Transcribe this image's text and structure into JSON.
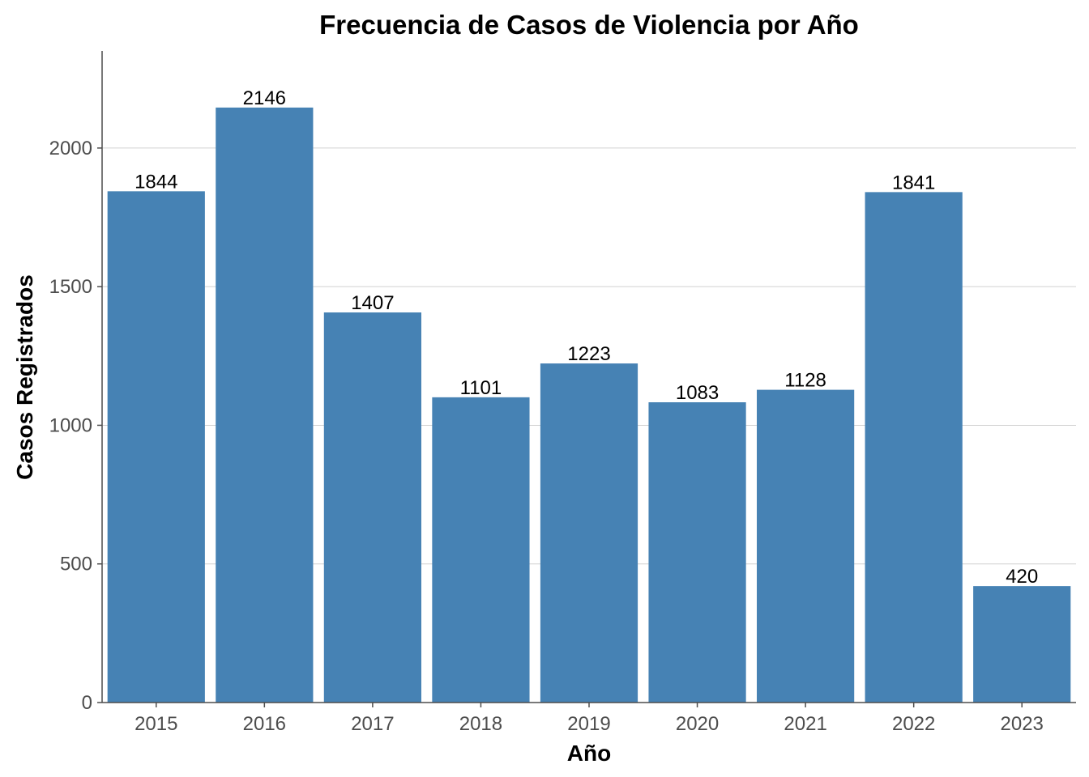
{
  "chart_data": {
    "type": "bar",
    "title": "Frecuencia de Casos de Violencia por Año",
    "xlabel": "Año",
    "ylabel": "Casos Registrados",
    "categories": [
      "2015",
      "2016",
      "2017",
      "2018",
      "2019",
      "2020",
      "2021",
      "2022",
      "2023"
    ],
    "values": [
      1844,
      2146,
      1407,
      1101,
      1223,
      1083,
      1128,
      1841,
      420
    ],
    "data_labels": [
      "1844",
      "2146",
      "1407",
      "1101",
      "1223",
      "1083",
      "1128",
      "1841",
      "420"
    ],
    "yticks": [
      0,
      500,
      1000,
      1500,
      2000
    ],
    "ytick_labels": [
      "0",
      "500",
      "1000",
      "1500",
      "2000"
    ],
    "ylim": [
      0,
      2350
    ],
    "grid": "horizontal major",
    "legend": "none",
    "bar_color": "#4682B4",
    "grid_color": "#d0d0d0",
    "axis_color": "#4d4d4d"
  }
}
